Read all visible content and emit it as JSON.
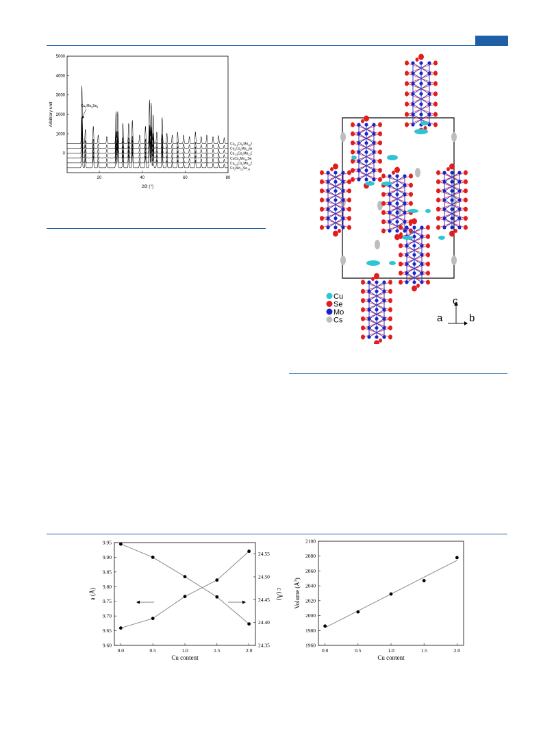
{
  "colors": {
    "accent": "#1f5fa6",
    "cu": "#2ec4d6",
    "se": "#e01e1e",
    "mo": "#1a23c8",
    "cs": "#bdbdbd",
    "bond_se": "#e8403a",
    "bond_mo": "#2a35d0"
  },
  "xrd": {
    "ylabel": "Arbitrary unit",
    "xlabel": "2Θ (°)",
    "annotation_base": "Cu",
    "annotation_sub1": "2",
    "annotation_mid": "Mo",
    "annotation_sub2": "6",
    "annotation_mid2": "Se",
    "annotation_sub3": "8",
    "series_labels": [
      {
        "a": "Cu",
        "as": "2.1",
        "b": "Cs",
        "bs": "2",
        "c": "Mo",
        "cs": "12",
        "d": "Se",
        "ds": "14"
      },
      {
        "a": "Cu",
        "as": "2",
        "b": "Cs",
        "bs": "2",
        "c": "Mo",
        "cs": "12",
        "d": "Se",
        "ds": "14"
      },
      {
        "a": "Cu",
        "as": "1.5",
        "b": "Cs",
        "bs": "2",
        "c": "Mo",
        "cs": "12",
        "d": "Se",
        "ds": "14"
      },
      {
        "a": "Cu",
        "as": "",
        "b": "Cs",
        "bs": "2",
        "c": "Mo",
        "cs": "12",
        "d": "Se",
        "ds": "14"
      },
      {
        "a": "Cu",
        "as": "0.5",
        "b": "Cs",
        "bs": "2",
        "c": "Mo",
        "cs": "12",
        "d": "Se",
        "ds": "14"
      },
      {
        "a": "",
        "as": "",
        "b": "Cs",
        "bs": "2",
        "c": "Mo",
        "cs": "12",
        "d": "Se",
        "ds": "14"
      }
    ]
  },
  "structure": {
    "legend": [
      {
        "label": "Cu",
        "color": "#2ec4d6"
      },
      {
        "label": "Se",
        "color": "#e01e1e"
      },
      {
        "label": "Mo",
        "color": "#1a23c8"
      },
      {
        "label": "Cs",
        "color": "#bdbdbd"
      }
    ],
    "axis_c": "c",
    "axis_a": "a",
    "axis_b": "b"
  },
  "chart_data": [
    {
      "type": "line",
      "title": "",
      "xlabel": "2Θ (°)",
      "ylabel": "Arbitrary unit",
      "xlim": [
        5,
        80
      ],
      "ylim": [
        -1000,
        5000
      ],
      "xticks": [
        20,
        40,
        60,
        80
      ],
      "yticks": [
        0,
        1000,
        2000,
        3000,
        4000,
        5000
      ],
      "series": [
        {
          "name": "Cu2.1Cs2Mo12Se14",
          "offset": 1500
        },
        {
          "name": "Cu2Cs2Mo12Se14",
          "offset": 1250
        },
        {
          "name": "Cu1.5Cs2Mo12Se14",
          "offset": 1000
        },
        {
          "name": "CuCs2Mo12Se14",
          "offset": 750
        },
        {
          "name": "Cu0.5Cs2Mo12Se14",
          "offset": 500
        },
        {
          "name": "Cs2Mo12Se14",
          "offset": 250
        }
      ]
    },
    {
      "type": "scatter",
      "xlabel": "Cu content",
      "ylabel": "a (Å)",
      "ylabel2": "c (Å)",
      "xlim": [
        -0.1,
        2.1
      ],
      "ylim": [
        9.6,
        9.95
      ],
      "ylim2": [
        24.35,
        24.575
      ],
      "xticks": [
        "0.0",
        "0.5",
        "1.0",
        "1.5",
        "2.0"
      ],
      "yticks": [
        "9.60",
        "9.65",
        "9.70",
        "9.75",
        "9.80",
        "9.85",
        "9.90",
        "9.95"
      ],
      "yticks2": [
        "24.35",
        "24.40",
        "24.45",
        "24.50",
        "24.55"
      ],
      "series": [
        {
          "axis": "left",
          "x": [
            0,
            0.5,
            1,
            1.5,
            2
          ],
          "y": [
            9.945,
            9.9,
            9.834,
            9.765,
            9.673
          ]
        },
        {
          "axis": "right",
          "x": [
            0,
            0.5,
            1,
            1.5,
            2
          ],
          "y": [
            24.388,
            24.409,
            24.457,
            24.493,
            24.556
          ]
        }
      ]
    },
    {
      "type": "scatter",
      "xlabel": "Cu content",
      "ylabel": "Volume (Å3)",
      "ylabel_main": "Volume (Å",
      "ylabel_sup": "3",
      "xlim": [
        -0.1,
        2.1
      ],
      "ylim": [
        1960,
        2100
      ],
      "xticks": [
        "0.0",
        "0.5",
        "1.0",
        "1.5",
        "2.0"
      ],
      "yticks": [
        "1960",
        "1980",
        "2000",
        "2020",
        "2040",
        "2060",
        "2080",
        "2100"
      ],
      "series": [
        {
          "x": [
            0,
            0.5,
            1,
            1.5,
            2
          ],
          "y": [
            1986,
            2005,
            2029,
            2047,
            2078
          ]
        }
      ]
    }
  ]
}
